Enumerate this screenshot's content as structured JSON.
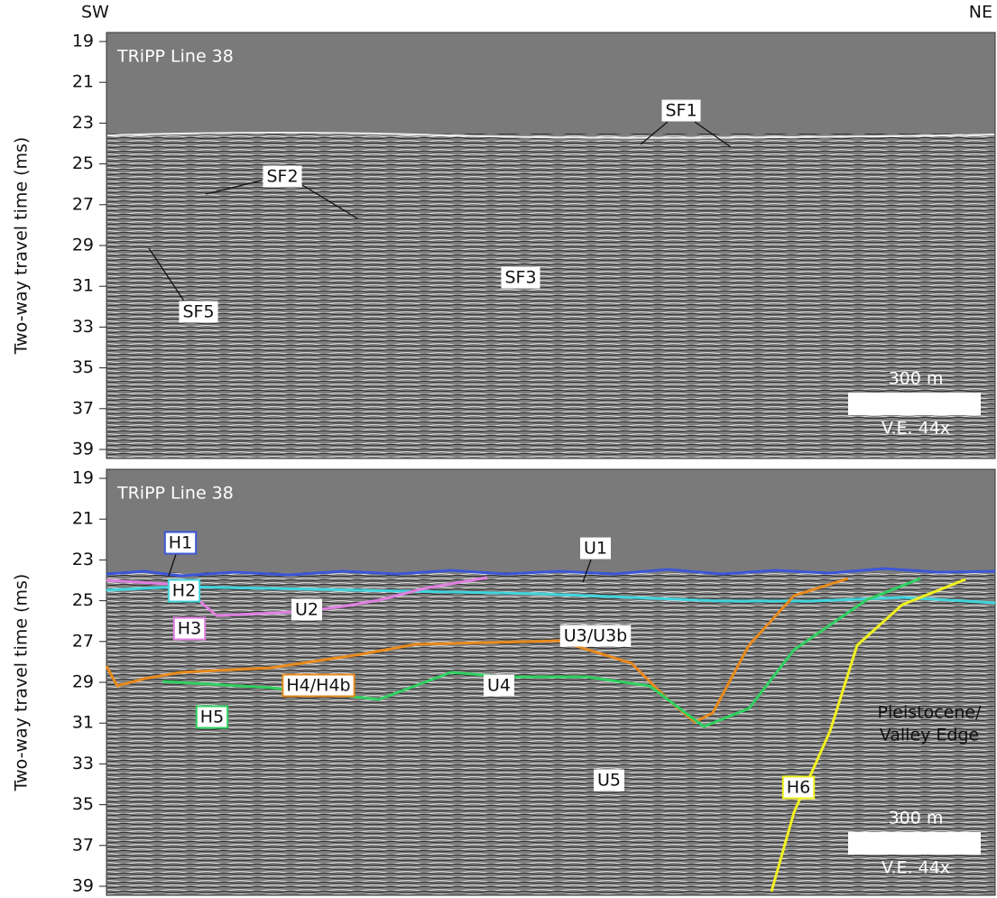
{
  "header": {
    "left": "SW",
    "right": "NE"
  },
  "y_axis_label": "Two-way travel time (ms)",
  "panels": [
    {
      "title": "TRiPP Line 38",
      "yticks": [
        19,
        21,
        23,
        25,
        27,
        29,
        31,
        33,
        35,
        37,
        39
      ],
      "labels": [
        "SF1",
        "SF2",
        "SF3",
        "SF5"
      ],
      "scale_bar": {
        "length": "300 m",
        "ve": "V.E. 44x"
      }
    },
    {
      "title": "TRiPP Line 38",
      "yticks": [
        19,
        21,
        23,
        25,
        27,
        29,
        31,
        33,
        35,
        37,
        39
      ],
      "labels": [
        "H1",
        "U1",
        "H2",
        "U2",
        "H3",
        "U3/U3b",
        "H4/H4b",
        "U4",
        "H5",
        "U5",
        "H6"
      ],
      "annotation": [
        "Pleistocene/",
        "Valley Edge"
      ],
      "scale_bar": {
        "length": "300 m",
        "ve": "V.E. 44x"
      }
    }
  ]
}
